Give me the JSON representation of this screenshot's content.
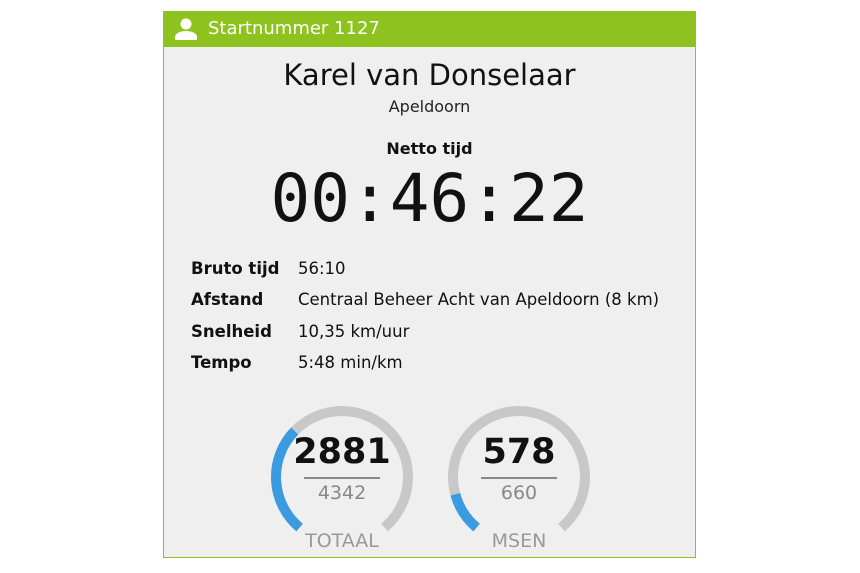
{
  "header": {
    "icon": "user-icon",
    "title": "Startnummer 1127"
  },
  "runner": {
    "name": "Karel van Donselaar",
    "city": "Apeldoorn"
  },
  "netto": {
    "label": "Netto tijd",
    "time": "00:46:22"
  },
  "details": [
    {
      "label": "Bruto tijd",
      "value": "56:10"
    },
    {
      "label": "Afstand",
      "value": "Centraal Beheer Acht van Apeldoorn (8 km)"
    },
    {
      "label": "Snelheid",
      "value": "10,35 km/uur"
    },
    {
      "label": "Tempo",
      "value": "5:48 min/km"
    }
  ],
  "gauges": [
    {
      "rank": "2881",
      "total": "4342",
      "category": "TOTAAL"
    },
    {
      "rank": "578",
      "total": "660",
      "category": "MSEN"
    }
  ],
  "colors": {
    "accent": "#8dc21f",
    "gauge_fill": "#3a9be0",
    "gauge_track": "#c8c8c8"
  }
}
